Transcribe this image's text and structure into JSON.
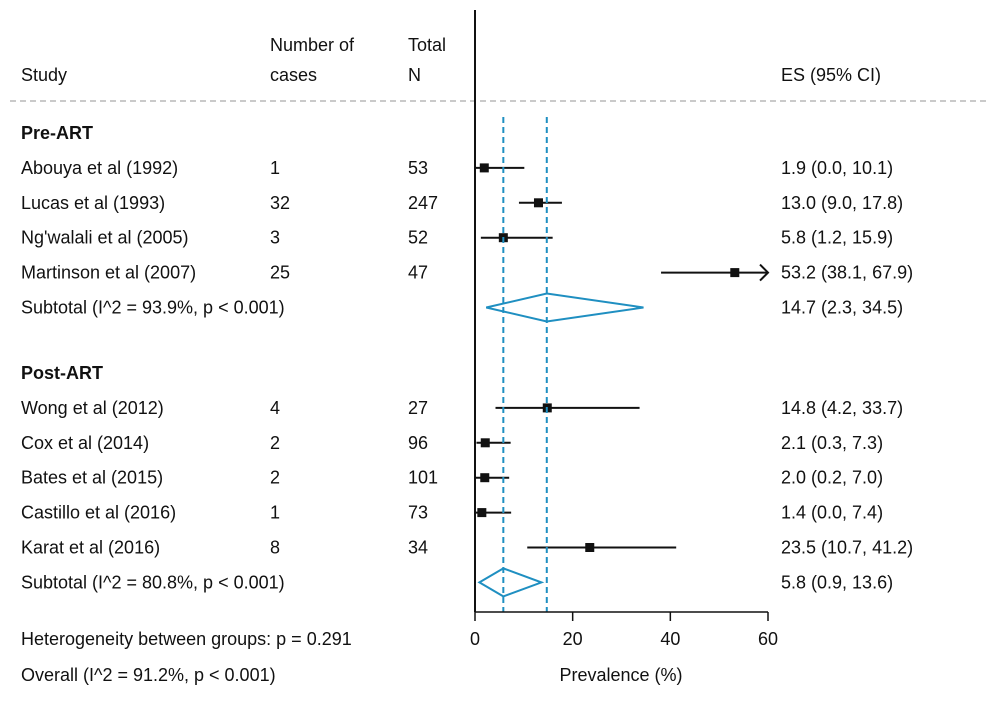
{
  "colors": {
    "accent": "#1f8fc1",
    "ink": "#111111",
    "separator": "#b8b8b8"
  },
  "headers": {
    "study": "Study",
    "cases_line1": "Number of",
    "cases_line2": "cases",
    "total_line1": "Total",
    "total_line2": "N",
    "es": "ES (95% CI)"
  },
  "footer": {
    "heterogeneity": "Heterogeneity between groups: p = 0.291",
    "overall": "Overall  (I^2 = 91.2%, p < 0.001)"
  },
  "chart_data": {
    "type": "forest",
    "xlabel": "Prevalence (%)",
    "xlim": [
      0,
      60
    ],
    "xticks": [
      0,
      20,
      40,
      60
    ],
    "reference_lines": [
      5.8,
      14.7
    ],
    "groups": [
      {
        "name": "Pre-ART",
        "studies": [
          {
            "study": "Abouya et al (1992)",
            "cases": "1",
            "n": "53",
            "es": 1.9,
            "lo": 0.0,
            "hi": 10.1,
            "label": "1.9 (0.0, 10.1)"
          },
          {
            "study": "Lucas et al (1993)",
            "cases": "32",
            "n": "247",
            "es": 13.0,
            "lo": 9.0,
            "hi": 17.8,
            "label": "13.0 (9.0, 17.8)"
          },
          {
            "study": "Ng'walali et al (2005)",
            "cases": "3",
            "n": "52",
            "es": 5.8,
            "lo": 1.2,
            "hi": 15.9,
            "label": "5.8 (1.2, 15.9)"
          },
          {
            "study": "Martinson et al (2007)",
            "cases": "25",
            "n": "47",
            "es": 53.2,
            "lo": 38.1,
            "hi": 67.9,
            "label": "53.2 (38.1, 67.9)"
          }
        ],
        "subtotal": {
          "label": "Subtotal  (I^2 = 93.9%, p < 0.001)",
          "es": 14.7,
          "lo": 2.3,
          "hi": 34.5,
          "es_label": "14.7 (2.3, 34.5)"
        }
      },
      {
        "name": "Post-ART",
        "studies": [
          {
            "study": "Wong et al (2012)",
            "cases": "4",
            "n": "27",
            "es": 14.8,
            "lo": 4.2,
            "hi": 33.7,
            "label": "14.8 (4.2, 33.7)"
          },
          {
            "study": "Cox et al (2014)",
            "cases": "2",
            "n": "96",
            "es": 2.1,
            "lo": 0.3,
            "hi": 7.3,
            "label": "2.1 (0.3, 7.3)"
          },
          {
            "study": "Bates et al (2015)",
            "cases": "2",
            "n": "101",
            "es": 2.0,
            "lo": 0.2,
            "hi": 7.0,
            "label": "2.0 (0.2, 7.0)"
          },
          {
            "study": "Castillo et al (2016)",
            "cases": "1",
            "n": "73",
            "es": 1.4,
            "lo": 0.0,
            "hi": 7.4,
            "label": "1.4 (0.0, 7.4)"
          },
          {
            "study": "Karat et al (2016)",
            "cases": "8",
            "n": "34",
            "es": 23.5,
            "lo": 10.7,
            "hi": 41.2,
            "label": "23.5 (10.7, 41.2)"
          }
        ],
        "subtotal": {
          "label": "Subtotal  (I^2 = 80.8%, p < 0.001)",
          "es": 5.8,
          "lo": 0.9,
          "hi": 13.6,
          "es_label": "5.8 (0.9, 13.6)"
        }
      }
    ]
  }
}
